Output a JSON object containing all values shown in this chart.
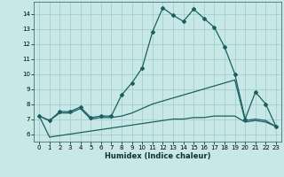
{
  "xlabel": "Humidex (Indice chaleur)",
  "ylabel": "",
  "background_color": "#c8e8e8",
  "grid_color": "#a0c8c8",
  "line_color": "#1a6060",
  "xlim": [
    -0.5,
    23.5
  ],
  "ylim": [
    5.5,
    14.8
  ],
  "xticks": [
    0,
    1,
    2,
    3,
    4,
    5,
    6,
    7,
    8,
    9,
    10,
    11,
    12,
    13,
    14,
    15,
    16,
    17,
    18,
    19,
    20,
    21,
    22,
    23
  ],
  "yticks": [
    6,
    7,
    8,
    9,
    10,
    11,
    12,
    13,
    14
  ],
  "series1_x": [
    0,
    1,
    2,
    3,
    4,
    5,
    6,
    7,
    8,
    9,
    10,
    11,
    12,
    13,
    14,
    15,
    16,
    17,
    18,
    19,
    20,
    21,
    22,
    23
  ],
  "series1_y": [
    7.2,
    6.9,
    7.5,
    7.5,
    7.8,
    7.1,
    7.2,
    7.2,
    8.6,
    9.4,
    10.4,
    12.8,
    14.4,
    13.9,
    13.5,
    14.3,
    13.7,
    13.1,
    11.8,
    10.0,
    7.0,
    8.8,
    8.0,
    6.5
  ],
  "series2_x": [
    0,
    1,
    2,
    3,
    4,
    5,
    6,
    7,
    8,
    9,
    10,
    11,
    12,
    13,
    14,
    15,
    16,
    17,
    18,
    19,
    20,
    21,
    22,
    23
  ],
  "series2_y": [
    7.2,
    6.9,
    7.4,
    7.4,
    7.7,
    7.0,
    7.1,
    7.1,
    7.2,
    7.4,
    7.7,
    8.0,
    8.2,
    8.4,
    8.6,
    8.8,
    9.0,
    9.2,
    9.4,
    9.6,
    6.9,
    7.0,
    6.9,
    6.5
  ],
  "series3_x": [
    0,
    1,
    2,
    3,
    4,
    5,
    6,
    7,
    8,
    9,
    10,
    11,
    12,
    13,
    14,
    15,
    16,
    17,
    18,
    19,
    20,
    21,
    22,
    23
  ],
  "series3_y": [
    7.2,
    5.8,
    5.9,
    6.0,
    6.1,
    6.2,
    6.3,
    6.4,
    6.5,
    6.6,
    6.7,
    6.8,
    6.9,
    7.0,
    7.0,
    7.1,
    7.1,
    7.2,
    7.2,
    7.2,
    6.8,
    6.9,
    6.8,
    6.5
  ]
}
